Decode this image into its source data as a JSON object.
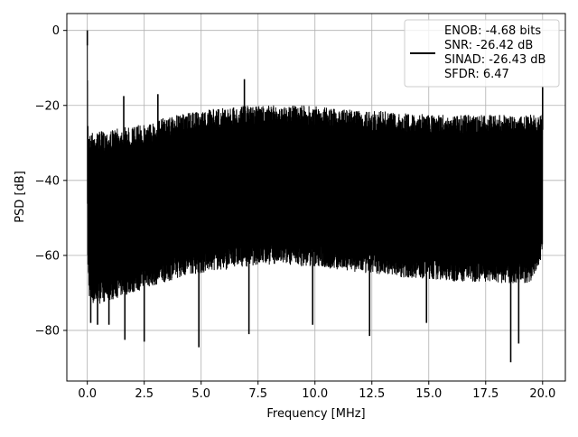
{
  "chart_data": {
    "type": "line",
    "title": "",
    "xlabel": "Frequency [MHz]",
    "ylabel": "PSD [dB]",
    "xlim": [
      -0.9,
      21.0
    ],
    "ylim": [
      -93.5,
      4.5
    ],
    "x_ticks": [
      0.0,
      2.5,
      5.0,
      7.5,
      10.0,
      12.5,
      15.0,
      17.5,
      20.0
    ],
    "x_tick_labels": [
      "0.0",
      "2.5",
      "5.0",
      "7.5",
      "10.0",
      "12.5",
      "15.0",
      "17.5",
      "20.0"
    ],
    "y_ticks": [
      0,
      -20,
      -40,
      -60,
      -80
    ],
    "y_tick_labels": [
      "0",
      "−20",
      "−40",
      "−60",
      "−80"
    ],
    "grid": true,
    "legend_position": "top-right",
    "line_color": "#000000",
    "legend_entries": [
      "ENOB: -4.68 bits",
      "SNR: -26.42 dB",
      "SINAD: -26.43 dB",
      "SFDR: 6.47"
    ],
    "series": [
      {
        "x": [
          0.0,
          0.02,
          0.05,
          0.1,
          0.2,
          0.5,
          1.0,
          1.5,
          2.0,
          2.5,
          3.0,
          3.5,
          4.0,
          4.5,
          5.0,
          5.5,
          6.0,
          6.5,
          7.0,
          7.5,
          8.0,
          8.5,
          9.0,
          9.5,
          10.0,
          10.5,
          11.0,
          11.5,
          12.0,
          12.5,
          13.0,
          13.5,
          14.0,
          14.5,
          15.0,
          15.5,
          16.0,
          16.5,
          17.0,
          17.5,
          18.0,
          18.5,
          19.0,
          19.5,
          20.0
        ],
        "upper": [
          0.0,
          -22.0,
          -26.0,
          -27.5,
          -27.0,
          -27.0,
          -26.5,
          -26.0,
          -25.5,
          -25.0,
          -24.0,
          -23.0,
          -22.5,
          -22.0,
          -21.5,
          -21.0,
          -20.5,
          -20.5,
          -20.0,
          -20.0,
          -20.0,
          -20.0,
          -20.0,
          -20.0,
          -20.2,
          -20.5,
          -21.0,
          -21.0,
          -21.5,
          -21.5,
          -21.5,
          -22.0,
          -22.0,
          -22.0,
          -22.5,
          -22.5,
          -22.5,
          -22.5,
          -22.5,
          -22.5,
          -22.5,
          -22.5,
          -22.5,
          -22.5,
          -22.5
        ],
        "lower": [
          -47.0,
          -65.0,
          -68.0,
          -72.0,
          -73.0,
          -73.0,
          -72.0,
          -71.0,
          -70.0,
          -69.0,
          -68.0,
          -67.0,
          -66.0,
          -65.0,
          -65.0,
          -64.0,
          -64.0,
          -63.0,
          -63.0,
          -62.5,
          -62.5,
          -62.5,
          -62.5,
          -63.0,
          -63.0,
          -63.5,
          -64.0,
          -64.0,
          -65.0,
          -65.0,
          -65.0,
          -65.5,
          -66.0,
          -66.0,
          -66.5,
          -66.5,
          -67.0,
          -67.0,
          -67.0,
          -67.0,
          -67.5,
          -67.5,
          -67.5,
          -67.5,
          -60.0
        ],
        "spikes": [
          [
            0.0,
            0.0
          ],
          [
            1.6,
            -17.5
          ],
          [
            3.1,
            -17.0
          ],
          [
            6.9,
            -13.0
          ],
          [
            20.0,
            -15.0
          ]
        ],
        "dips": [
          [
            0.15,
            -78.0
          ],
          [
            0.45,
            -78.5
          ],
          [
            0.95,
            -78.5
          ],
          [
            1.65,
            -82.5
          ],
          [
            2.5,
            -83.0
          ],
          [
            4.9,
            -84.5
          ],
          [
            7.1,
            -81.0
          ],
          [
            9.9,
            -78.5
          ],
          [
            12.4,
            -81.5
          ],
          [
            14.9,
            -78.0
          ],
          [
            18.6,
            -88.5
          ],
          [
            18.95,
            -83.5
          ]
        ]
      }
    ]
  }
}
